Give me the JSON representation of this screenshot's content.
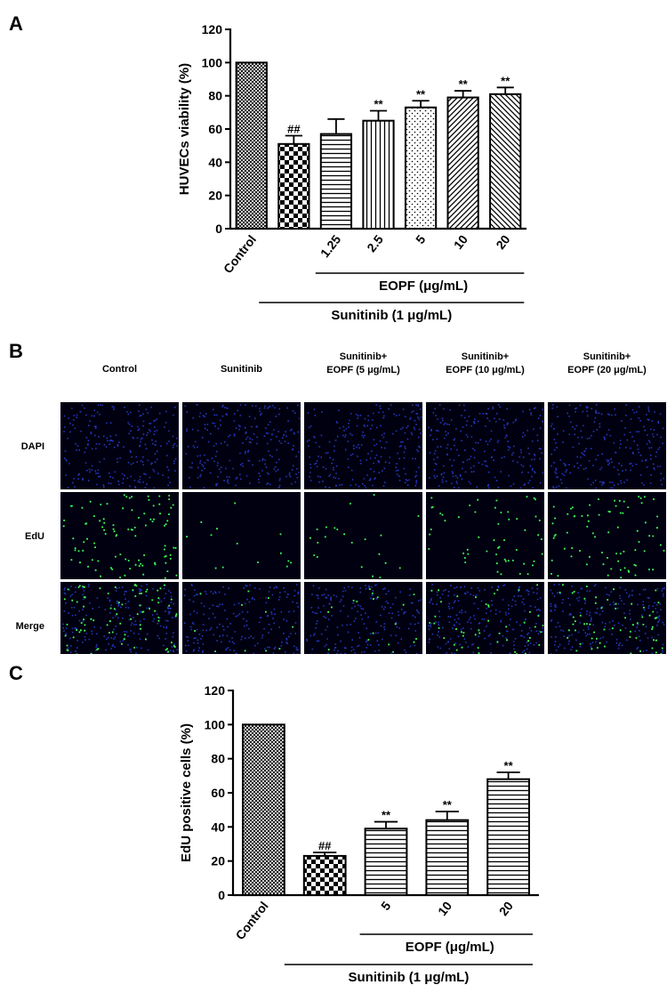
{
  "panel_labels": {
    "a": "A",
    "b": "B",
    "c": "C"
  },
  "chart_data": [
    {
      "panel": "A",
      "type": "bar",
      "categories": [
        "Control",
        "",
        "1.25",
        "2.5",
        "5",
        "10",
        "20"
      ],
      "values": [
        100,
        51,
        57,
        65,
        73,
        79,
        81
      ],
      "errors": [
        0,
        5,
        9,
        6,
        4,
        4,
        4
      ],
      "annotations": [
        "",
        "##",
        "",
        "**",
        "**",
        "**",
        "**"
      ],
      "patterns": [
        "crosshatch",
        "checker",
        "hlines",
        "vlines",
        "dots",
        "diag-fwd",
        "diag-back"
      ],
      "ylabel": "HUVECs viability (%)",
      "ylim": [
        0,
        120
      ],
      "yticks": [
        0,
        20,
        40,
        60,
        80,
        100,
        120
      ],
      "group_labels": [
        "EOPF (μg/mL)",
        "Sunitinib (1 μg/mL)"
      ]
    },
    {
      "panel": "C",
      "type": "bar",
      "categories": [
        "Control",
        "",
        "5",
        "10",
        "20"
      ],
      "values": [
        100,
        23,
        39,
        44,
        68
      ],
      "errors": [
        0,
        2,
        4,
        5,
        4
      ],
      "annotations": [
        "",
        "##",
        "**",
        "**",
        "**"
      ],
      "patterns": [
        "crosshatch",
        "checker",
        "hlines",
        "hlines",
        "hlines"
      ],
      "ylabel": "EdU positive cells (%)",
      "ylim": [
        0,
        120
      ],
      "yticks": [
        0,
        20,
        40,
        60,
        80,
        100,
        120
      ],
      "group_labels": [
        "EOPF (μg/mL)",
        "Sunitinib (1 μg/mL)"
      ]
    }
  ],
  "micrographs": {
    "columns": [
      [
        "Control"
      ],
      [
        "Sunitinib"
      ],
      [
        "Sunitinib+",
        "EOPF (5 μg/mL)"
      ],
      [
        "Sunitinib+",
        "EOPF (10 μg/mL)"
      ],
      [
        "Sunitinib+",
        "EOPF (20 μg/mL)"
      ]
    ],
    "rows": [
      "DAPI",
      "EdU",
      "Merge"
    ],
    "edu_density": [
      0.55,
      0.08,
      0.12,
      0.3,
      0.42
    ],
    "colors": {
      "background": "#000010",
      "dapi": "#2a3fd9",
      "edu": "#3fff5a"
    }
  }
}
